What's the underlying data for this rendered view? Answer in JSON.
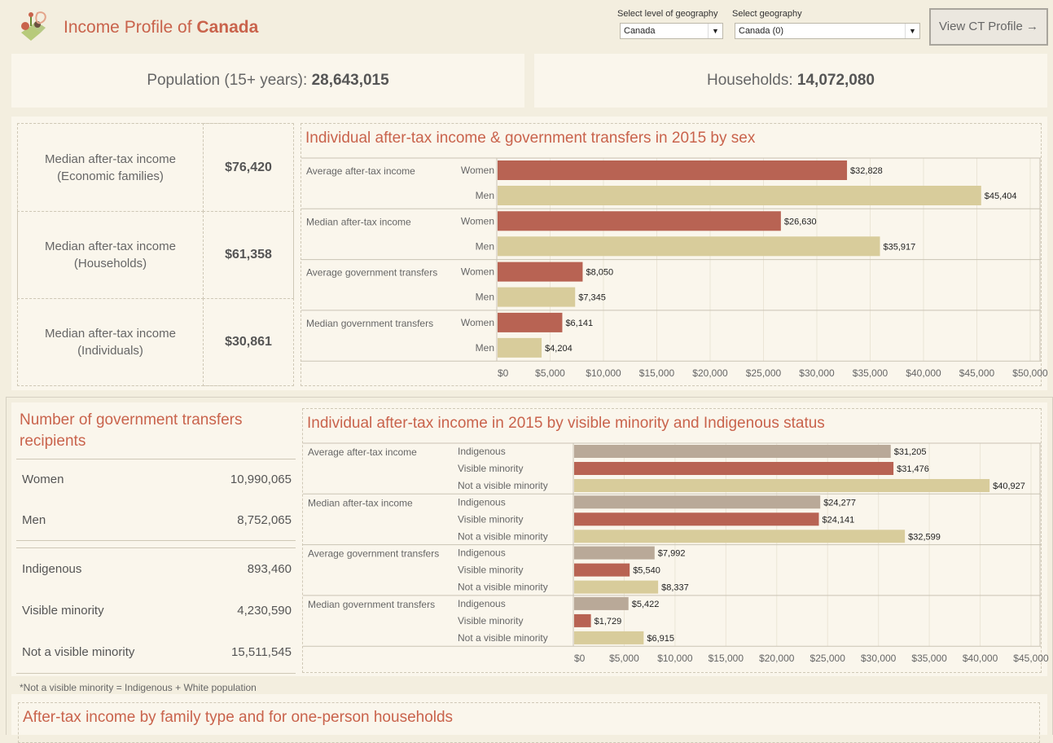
{
  "header": {
    "title_prefix": "Income Profile of ",
    "title_place": "Canada",
    "geo_level_label": "Select level of geography",
    "geo_level_value": "Canada",
    "geo_label": "Select geography",
    "geo_value": "Canada (0)",
    "view_button": "View CT Profile →"
  },
  "stats": {
    "population_label": "Population (15+ years): ",
    "population_value": "28,643,015",
    "households_label": "Households: ",
    "households_value": "14,072,080"
  },
  "medians": [
    {
      "label_line1": "Median after-tax income",
      "label_line2": "(Economic families)",
      "value": "$76,420"
    },
    {
      "label_line1": "Median after-tax income",
      "label_line2": "(Households)",
      "value": "$61,358"
    },
    {
      "label_line1": "Median after-tax income",
      "label_line2": "(Individuals)",
      "value": "$30,861"
    }
  ],
  "recipients": {
    "title": "Number of government transfers recipients",
    "rows": [
      {
        "label": "Women",
        "value": "10,990,065"
      },
      {
        "label": "Men",
        "value": "8,752,065"
      },
      {
        "label": "Indigenous",
        "value": "893,460"
      },
      {
        "label": "Visible minority",
        "value": "4,230,590"
      },
      {
        "label": "Not a visible minority",
        "value": "15,511,545"
      }
    ],
    "footnote": "*Not a visible minority = Indigenous + White population"
  },
  "family_section_title": "After-tax income by family type and for one-person households",
  "colors": {
    "red": "#b86353",
    "beige": "#d8cc9b",
    "taupe": "#b9a998",
    "title": "#c9634c"
  },
  "chart_data": [
    {
      "type": "bar",
      "orientation": "horizontal",
      "title": "Individual after-tax income & government transfers in 2015 by sex",
      "groups": [
        "Average after-tax income",
        "Median after-tax income",
        "Average government transfers",
        "Median government transfers"
      ],
      "series": [
        {
          "name": "Women",
          "values": [
            32828,
            26630,
            8050,
            6141
          ]
        },
        {
          "name": "Men",
          "values": [
            45404,
            35917,
            7345,
            4204
          ]
        }
      ],
      "value_labels": [
        [
          "$32,828",
          "$45,404"
        ],
        [
          "$26,630",
          "$35,917"
        ],
        [
          "$8,050",
          "$7,345"
        ],
        [
          "$6,141",
          "$4,204"
        ]
      ],
      "xlim": [
        0,
        50000
      ],
      "ticks": [
        "$0",
        "$5,000",
        "$10,000",
        "$15,000",
        "$20,000",
        "$25,000",
        "$30,000",
        "$35,000",
        "$40,000",
        "$45,000",
        "$50,000"
      ],
      "tick_step": 5000
    },
    {
      "type": "bar",
      "orientation": "horizontal",
      "title": "Individual after-tax income in 2015 by visible minority and Indigenous status",
      "groups": [
        "Average after-tax income",
        "Median after-tax income",
        "Average government transfers",
        "Median government transfers"
      ],
      "series": [
        {
          "name": "Indigenous",
          "values": [
            31205,
            24277,
            7992,
            5422
          ]
        },
        {
          "name": "Visible minority",
          "values": [
            31476,
            24141,
            5540,
            1729
          ]
        },
        {
          "name": "Not a visible minority",
          "values": [
            40927,
            32599,
            8337,
            6915
          ]
        }
      ],
      "value_labels": [
        [
          "$31,205",
          "$31,476",
          "$40,927"
        ],
        [
          "$24,277",
          "$24,141",
          "$32,599"
        ],
        [
          "$7,992",
          "$5,540",
          "$8,337"
        ],
        [
          "$5,422",
          "$1,729",
          "$6,915"
        ]
      ],
      "xlim": [
        0,
        45000
      ],
      "ticks": [
        "$0",
        "$5,000",
        "$10,000",
        "$15,000",
        "$20,000",
        "$25,000",
        "$30,000",
        "$35,000",
        "$40,000",
        "$45,000"
      ],
      "tick_step": 5000
    }
  ]
}
